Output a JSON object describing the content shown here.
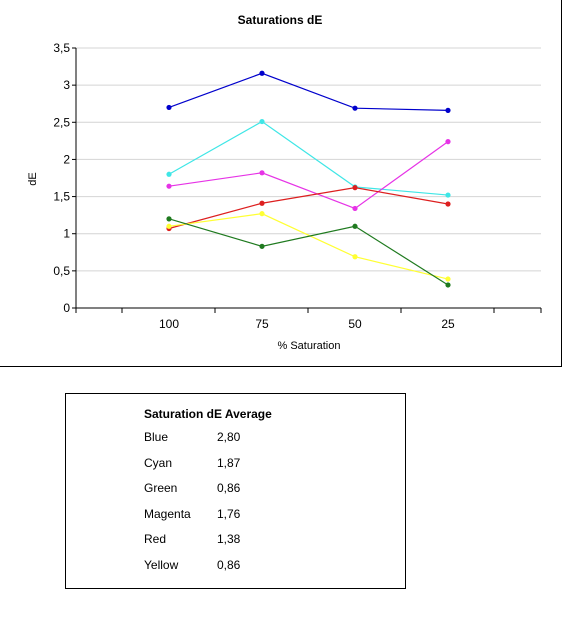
{
  "chart_data": {
    "type": "line",
    "title": "Saturations dE",
    "xlabel": "% Saturation",
    "ylabel": "dE",
    "categories": [
      "100",
      "75",
      "50",
      "25"
    ],
    "ylim": [
      0,
      3.5
    ],
    "yticks": [
      "0",
      "0,5",
      "1",
      "1,5",
      "2",
      "2,5",
      "3",
      "3,5"
    ],
    "grid": true,
    "series": [
      {
        "color": "#0000cc",
        "values": [
          2.7,
          3.16,
          2.69,
          2.66
        ]
      },
      {
        "color": "#3fe6e6",
        "values": [
          1.8,
          2.51,
          1.63,
          1.52
        ]
      },
      {
        "color": "#e633e6",
        "values": [
          1.64,
          1.82,
          1.34,
          2.24
        ]
      },
      {
        "color": "#dd1f1f",
        "values": [
          1.07,
          1.41,
          1.62,
          1.4
        ]
      },
      {
        "color": "#ffff33",
        "values": [
          1.1,
          1.27,
          0.69,
          0.39
        ]
      },
      {
        "color": "#1f7a1f",
        "values": [
          1.2,
          0.83,
          1.1,
          0.31
        ]
      }
    ]
  },
  "average_table": {
    "title": "Saturation dE Average",
    "rows": [
      {
        "label": "Blue",
        "value": "2,80"
      },
      {
        "label": "Cyan",
        "value": "1,87"
      },
      {
        "label": "Green",
        "value": "0,86"
      },
      {
        "label": "Magenta",
        "value": "1,76"
      },
      {
        "label": "Red",
        "value": "1,38"
      },
      {
        "label": "Yellow",
        "value": "0,86"
      }
    ]
  }
}
